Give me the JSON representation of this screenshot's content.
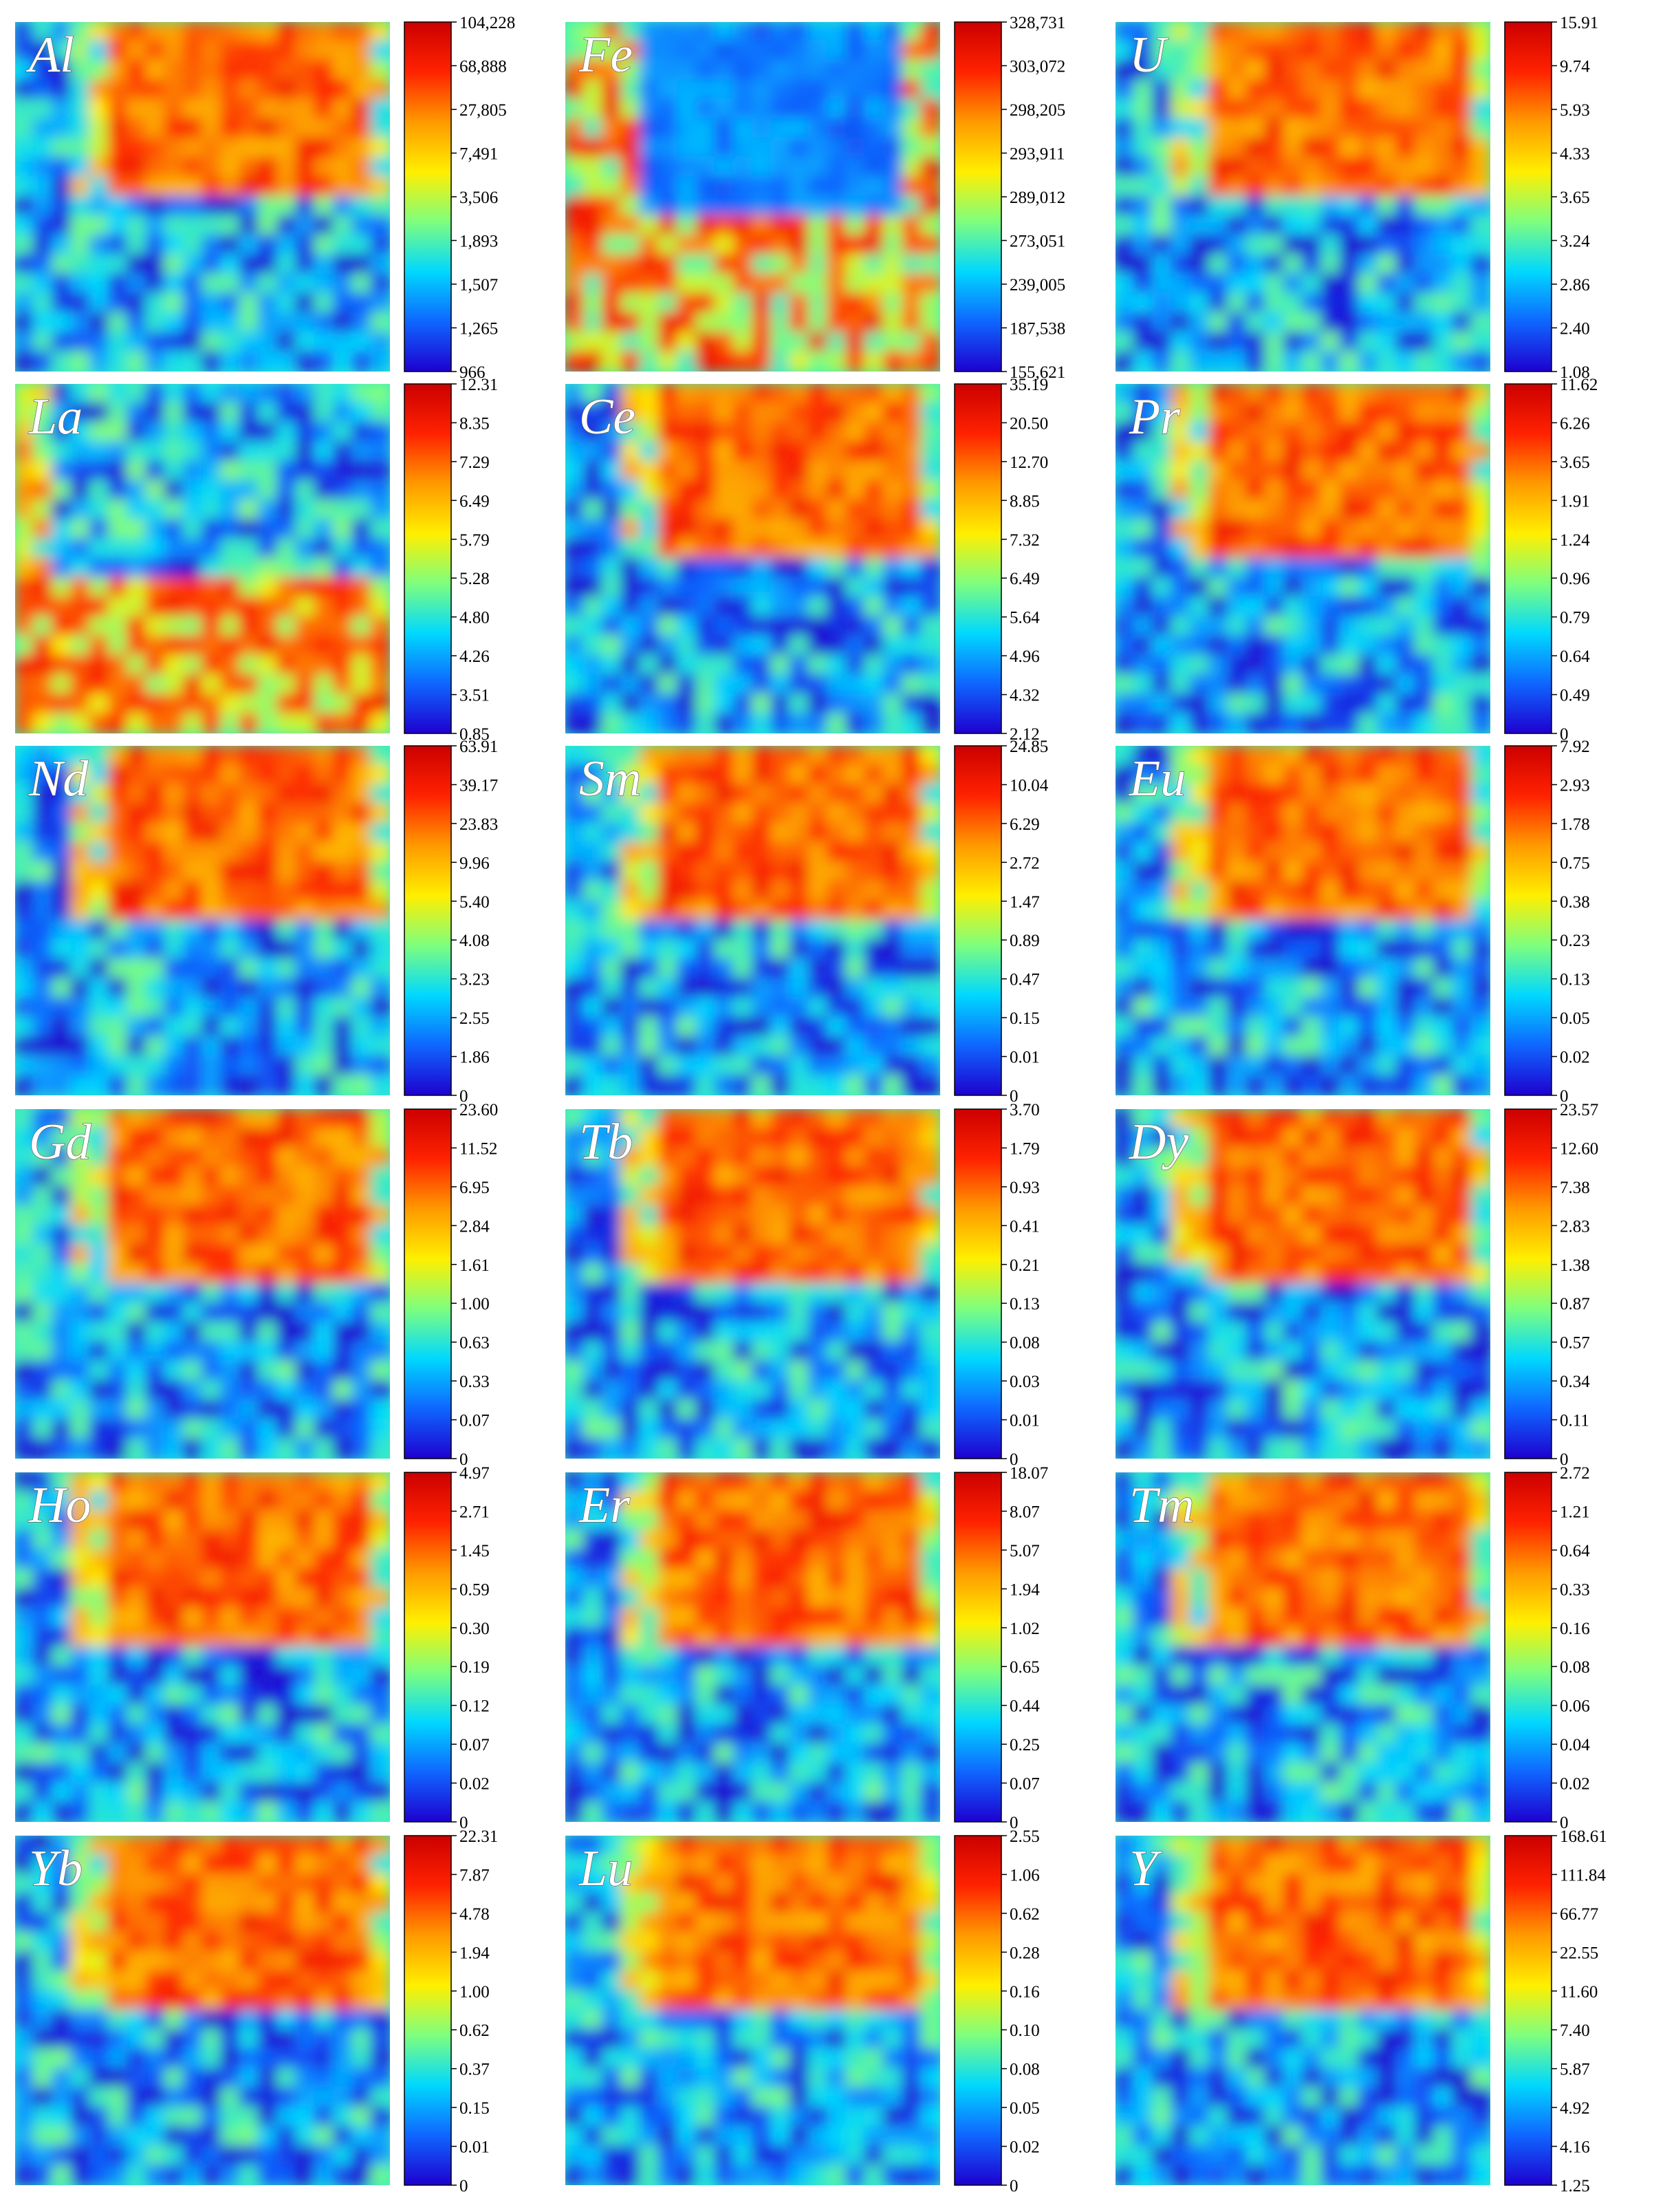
{
  "figure": {
    "type": "element-distribution-heatmaps",
    "colormap": [
      "#1e00d0",
      "#0f66ff",
      "#00d8ff",
      "#7eff7e",
      "#ffef00",
      "#ff9a00",
      "#ff2200",
      "#cc0000"
    ]
  },
  "chart_data": [
    {
      "type": "heatmap",
      "label": "Al",
      "colorbar_ticks": [
        "104,228",
        "68,888",
        "27,805",
        "7,491",
        "3,506",
        "1,893",
        "1,507",
        "1,265",
        "966"
      ],
      "pattern": "block-top"
    },
    {
      "type": "heatmap",
      "label": "Fe",
      "colorbar_ticks": [
        "328,731",
        "303,072",
        "298,205",
        "293,911",
        "289,012",
        "273,051",
        "239,005",
        "187,538",
        "155,621"
      ],
      "pattern": "inverse-top"
    },
    {
      "type": "heatmap",
      "label": "U",
      "colorbar_ticks": [
        "15.91",
        "9.74",
        "5.93",
        "4.33",
        "3.65",
        "3.24",
        "2.86",
        "2.40",
        "1.08"
      ],
      "pattern": "block-top"
    },
    {
      "type": "heatmap",
      "label": "La",
      "colorbar_ticks": [
        "12.31",
        "8.35",
        "7.29",
        "6.49",
        "5.79",
        "5.28",
        "4.80",
        "4.26",
        "3.51",
        "0.85"
      ],
      "pattern": "inverse-bottom"
    },
    {
      "type": "heatmap",
      "label": "Ce",
      "colorbar_ticks": [
        "35.19",
        "20.50",
        "12.70",
        "8.85",
        "7.32",
        "6.49",
        "5.64",
        "4.96",
        "4.32",
        "2.12"
      ],
      "pattern": "block-top"
    },
    {
      "type": "heatmap",
      "label": "Pr",
      "colorbar_ticks": [
        "11.62",
        "6.26",
        "3.65",
        "1.91",
        "1.24",
        "0.96",
        "0.79",
        "0.64",
        "0.49",
        "0"
      ],
      "pattern": "block-top"
    },
    {
      "type": "heatmap",
      "label": "Nd",
      "colorbar_ticks": [
        "63.91",
        "39.17",
        "23.83",
        "9.96",
        "5.40",
        "4.08",
        "3.23",
        "2.55",
        "1.86",
        "0"
      ],
      "pattern": "block-top"
    },
    {
      "type": "heatmap",
      "label": "Sm",
      "colorbar_ticks": [
        "24.85",
        "10.04",
        "6.29",
        "2.72",
        "1.47",
        "0.89",
        "0.47",
        "0.15",
        "0.01",
        "0"
      ],
      "pattern": "block-top"
    },
    {
      "type": "heatmap",
      "label": "Eu",
      "colorbar_ticks": [
        "7.92",
        "2.93",
        "1.78",
        "0.75",
        "0.38",
        "0.23",
        "0.13",
        "0.05",
        "0.02",
        "0"
      ],
      "pattern": "block-top"
    },
    {
      "type": "heatmap",
      "label": "Gd",
      "colorbar_ticks": [
        "23.60",
        "11.52",
        "6.95",
        "2.84",
        "1.61",
        "1.00",
        "0.63",
        "0.33",
        "0.07",
        "0"
      ],
      "pattern": "block-top"
    },
    {
      "type": "heatmap",
      "label": "Tb",
      "colorbar_ticks": [
        "3.70",
        "1.79",
        "0.93",
        "0.41",
        "0.21",
        "0.13",
        "0.08",
        "0.03",
        "0.01",
        "0"
      ],
      "pattern": "block-top"
    },
    {
      "type": "heatmap",
      "label": "Dy",
      "colorbar_ticks": [
        "23.57",
        "12.60",
        "7.38",
        "2.83",
        "1.38",
        "0.87",
        "0.57",
        "0.34",
        "0.11",
        "0"
      ],
      "pattern": "block-top"
    },
    {
      "type": "heatmap",
      "label": "Ho",
      "colorbar_ticks": [
        "4.97",
        "2.71",
        "1.45",
        "0.59",
        "0.30",
        "0.19",
        "0.12",
        "0.07",
        "0.02",
        "0"
      ],
      "pattern": "block-top"
    },
    {
      "type": "heatmap",
      "label": "Er",
      "colorbar_ticks": [
        "18.07",
        "8.07",
        "5.07",
        "1.94",
        "1.02",
        "0.65",
        "0.44",
        "0.25",
        "0.07",
        "0"
      ],
      "pattern": "block-top"
    },
    {
      "type": "heatmap",
      "label": "Tm",
      "colorbar_ticks": [
        "2.72",
        "1.21",
        "0.64",
        "0.33",
        "0.16",
        "0.08",
        "0.06",
        "0.04",
        "0.02",
        "0"
      ],
      "pattern": "block-top"
    },
    {
      "type": "heatmap",
      "label": "Yb",
      "colorbar_ticks": [
        "22.31",
        "7.87",
        "4.78",
        "1.94",
        "1.00",
        "0.62",
        "0.37",
        "0.15",
        "0.01",
        "0"
      ],
      "pattern": "block-top"
    },
    {
      "type": "heatmap",
      "label": "Lu",
      "colorbar_ticks": [
        "2.55",
        "1.06",
        "0.62",
        "0.28",
        "0.16",
        "0.10",
        "0.08",
        "0.05",
        "0.02",
        "0"
      ],
      "pattern": "block-top"
    },
    {
      "type": "heatmap",
      "label": "Y",
      "colorbar_ticks": [
        "168.61",
        "111.84",
        "66.77",
        "22.55",
        "11.60",
        "7.40",
        "5.87",
        "4.92",
        "4.16",
        "1.25"
      ],
      "pattern": "block-top"
    }
  ]
}
